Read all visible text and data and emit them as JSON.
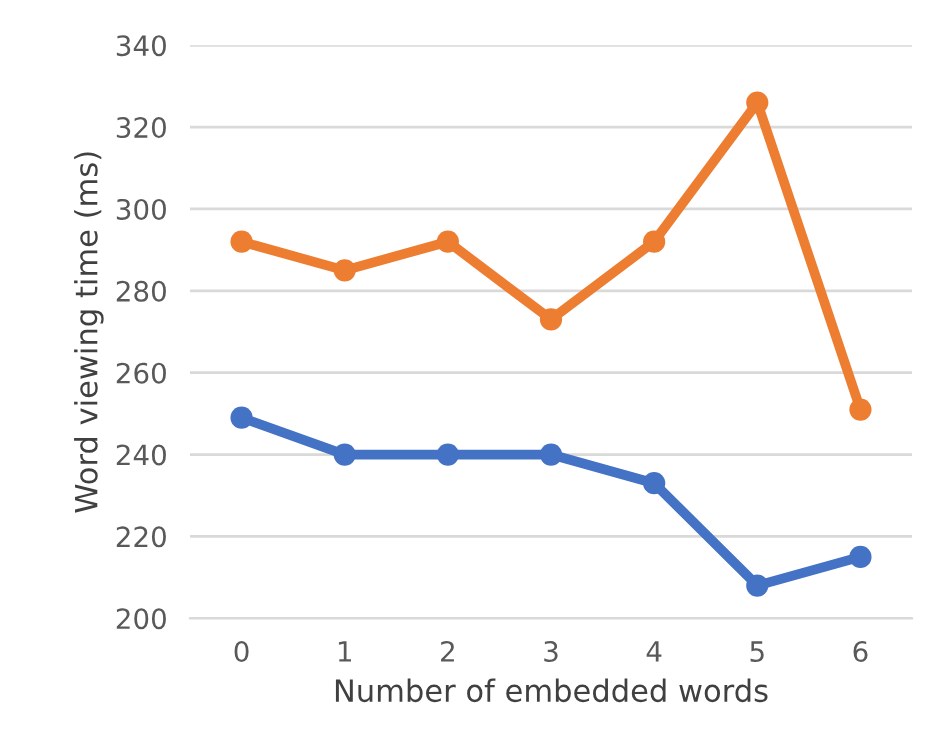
{
  "chart_data": {
    "type": "line",
    "xlabel": "Number of embedded words",
    "ylabel": "Word viewing time (ms)",
    "categories": [
      "0",
      "1",
      "2",
      "3",
      "4",
      "5",
      "6"
    ],
    "series": [
      {
        "color": "#4472c4",
        "values": [
          249,
          240,
          240,
          240,
          233,
          208,
          215
        ]
      },
      {
        "color": "#ed7d31",
        "values": [
          292,
          285,
          292,
          273,
          292,
          326,
          251
        ]
      }
    ],
    "ylim": [
      200,
      340
    ],
    "yticks": [
      200,
      220,
      240,
      260,
      280,
      300,
      320,
      340
    ],
    "grid": "y",
    "marker": "circle",
    "line_style": "solid"
  }
}
